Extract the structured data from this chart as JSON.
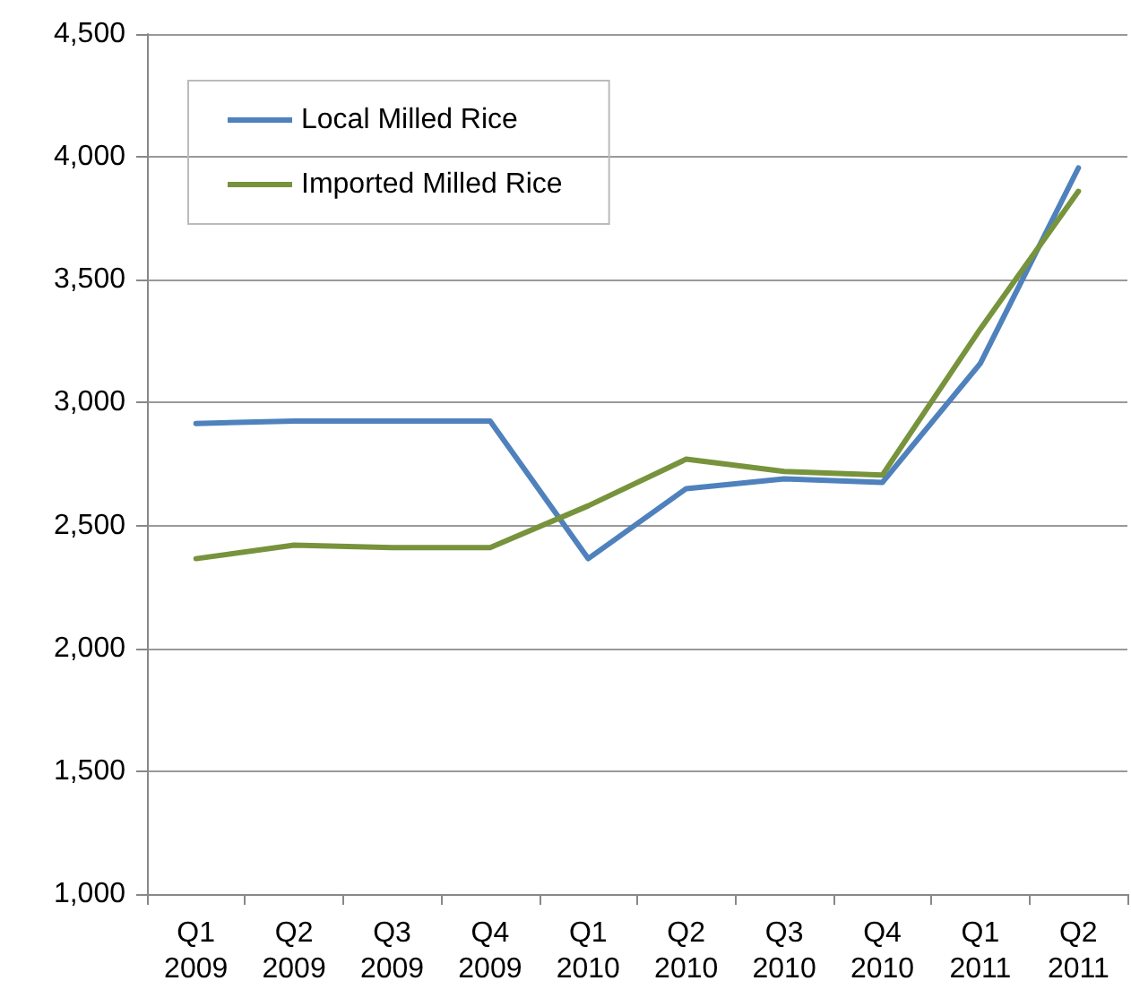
{
  "chart_data": {
    "type": "line",
    "categories": [
      "Q1\n2009",
      "Q2\n2009",
      "Q3\n2009",
      "Q4\n2009",
      "Q1\n2010",
      "Q2\n2010",
      "Q3\n2010",
      "Q4\n2010",
      "Q1\n2011",
      "Q2\n2011"
    ],
    "series": [
      {
        "name": "Local Milled Rice",
        "color": "#4f81bd",
        "values": [
          2915,
          2925,
          2925,
          2925,
          2365,
          2650,
          2690,
          2675,
          3160,
          3955
        ]
      },
      {
        "name": "Imported Milled Rice",
        "color": "#77933c",
        "values": [
          2365,
          2420,
          2410,
          2410,
          2580,
          2770,
          2720,
          2705,
          3300,
          3860
        ]
      }
    ],
    "ylim": [
      1000,
      4500
    ],
    "yticks": [
      {
        "value": 1000,
        "label": "1,000"
      },
      {
        "value": 1500,
        "label": "1,500"
      },
      {
        "value": 2000,
        "label": "2,000"
      },
      {
        "value": 2500,
        "label": "2,500"
      },
      {
        "value": 3000,
        "label": "3,000"
      },
      {
        "value": 3500,
        "label": "3,500"
      },
      {
        "value": 4000,
        "label": "4,000"
      },
      {
        "value": 4500,
        "label": "4,500"
      }
    ],
    "grid": "y",
    "legend": "top left",
    "marker": "none",
    "line_style": "solid"
  }
}
